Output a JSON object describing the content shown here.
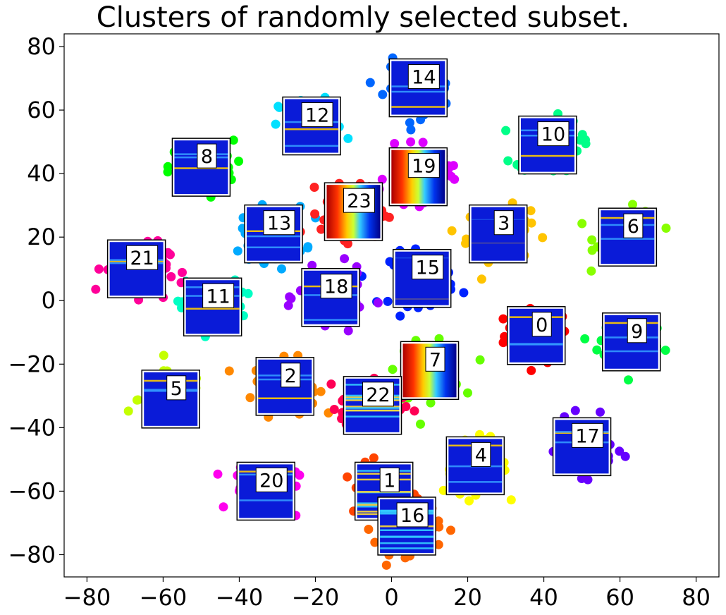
{
  "chart_data": {
    "type": "scatter",
    "title": "Clusters of randomly selected subset.",
    "xlabel": "",
    "ylabel": "",
    "xlim": [
      -86,
      86
    ],
    "ylim": [
      -87,
      84
    ],
    "xticks": [
      -80,
      -60,
      -40,
      -20,
      0,
      20,
      40,
      60,
      80
    ],
    "yticks": [
      80,
      60,
      40,
      20,
      0,
      -20,
      -40,
      -60,
      -80
    ],
    "xtick_labels": [
      "−80",
      "−60",
      "−40",
      "−20",
      "0",
      "20",
      "40",
      "60",
      "80"
    ],
    "ytick_labels": [
      "80",
      "60",
      "40",
      "20",
      "0",
      "−20",
      "−40",
      "−60",
      "−80"
    ],
    "grid": false,
    "legend": "none",
    "clusters": [
      {
        "label": "0",
        "x": 38,
        "y": -11,
        "color": "#ff0000",
        "thumb": "lines"
      },
      {
        "label": "1",
        "x": -2,
        "y": -60,
        "color": "#ff4400",
        "thumb": "speckle"
      },
      {
        "label": "2",
        "x": -28,
        "y": -27,
        "color": "#ff8800",
        "thumb": "lines"
      },
      {
        "label": "3",
        "x": 28,
        "y": 21,
        "color": "#ffc400",
        "thumb": "flat"
      },
      {
        "label": "4",
        "x": 22,
        "y": -52,
        "color": "#ffff00",
        "thumb": "lines"
      },
      {
        "label": "5",
        "x": -58,
        "y": -31,
        "color": "#c4ff00",
        "thumb": "lines"
      },
      {
        "label": "6",
        "x": 62,
        "y": 20,
        "color": "#88ff00",
        "thumb": "lines"
      },
      {
        "label": "7",
        "x": 10,
        "y": -22,
        "color": "#66ff00",
        "thumb": "rainbow"
      },
      {
        "label": "8",
        "x": -50,
        "y": 42,
        "color": "#00ff00",
        "thumb": "lines"
      },
      {
        "label": "9",
        "x": 63,
        "y": -13,
        "color": "#00ff44",
        "thumb": "lines"
      },
      {
        "label": "10",
        "x": 41,
        "y": 49,
        "color": "#00ff88",
        "thumb": "lines"
      },
      {
        "label": "11",
        "x": -47,
        "y": -2,
        "color": "#00ffc4",
        "thumb": "lines"
      },
      {
        "label": "12",
        "x": -21,
        "y": 55,
        "color": "#00e0ff",
        "thumb": "lines"
      },
      {
        "label": "13",
        "x": -31,
        "y": 21,
        "color": "#00aaff",
        "thumb": "lines"
      },
      {
        "label": "14",
        "x": 7,
        "y": 67,
        "color": "#0066ff",
        "thumb": "lines"
      },
      {
        "label": "15",
        "x": 8,
        "y": 7,
        "color": "#0022ff",
        "thumb": "flat"
      },
      {
        "label": "16",
        "x": 4,
        "y": -71,
        "color": "#ff6600",
        "thumb": "speckle"
      },
      {
        "label": "17",
        "x": 50,
        "y": -46,
        "color": "#6600ff",
        "thumb": "lines"
      },
      {
        "label": "18",
        "x": -16,
        "y": 1,
        "color": "#9900ff",
        "thumb": "lines"
      },
      {
        "label": "19",
        "x": 7,
        "y": 39,
        "color": "#dd00ff",
        "thumb": "rainbow"
      },
      {
        "label": "20",
        "x": -33,
        "y": -60,
        "color": "#ff00ee",
        "thumb": "lines"
      },
      {
        "label": "21",
        "x": -67,
        "y": 10,
        "color": "#ff0099",
        "thumb": "lines"
      },
      {
        "label": "22",
        "x": -5,
        "y": -33,
        "color": "#ff0055",
        "thumb": "speckle"
      },
      {
        "label": "23",
        "x": -10,
        "y": 28,
        "color": "#ff2222",
        "thumb": "rainbow"
      }
    ]
  }
}
